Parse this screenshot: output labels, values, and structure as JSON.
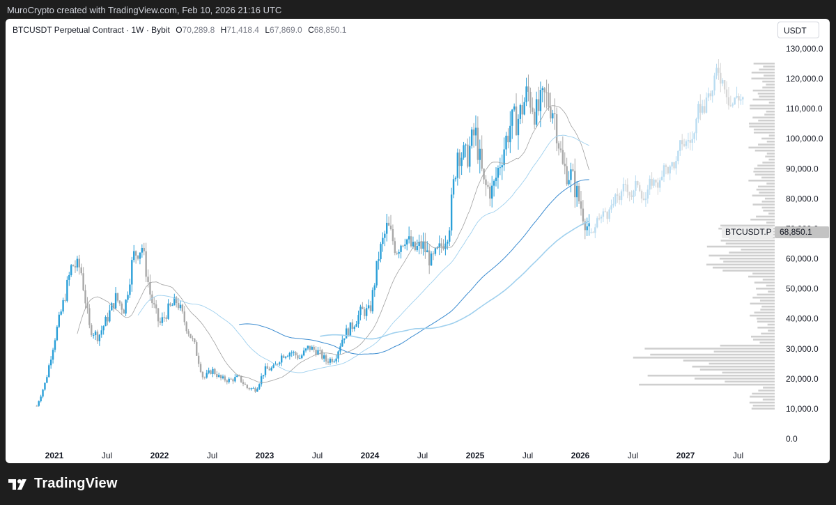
{
  "header": {
    "credit": "MuroCrypto created with TradingView.com, Feb 10, 2026 21:16 UTC"
  },
  "legend": {
    "symbol": "BTCUSDT Perpetual Contract · 1W · Bybit",
    "o_label": "O",
    "o_value": "70,289.8",
    "h_label": "H",
    "h_value": "71,418.4",
    "l_label": "L",
    "l_value": "67,869.0",
    "c_label": "C",
    "c_value": "68,850.1"
  },
  "price_axis": {
    "currency": "USDT",
    "symbol_tag": "BTCUSDT.P",
    "last_price": "68,850.1"
  },
  "footer": {
    "brand": "TradingView"
  },
  "colors": {
    "up": "#2a9fd8",
    "down": "#a8a8a8",
    "projection_up": "#b9dcf1",
    "projection_down": "#d6d6d6",
    "ma_dark": "#3a8bd0",
    "ma_light": "#9fd0ee",
    "ma_gray": "#a0a0a0",
    "volume_profile": "#cfcfcf"
  },
  "chart_data": {
    "type": "candlestick",
    "title": "BTCUSDT Perpetual Contract · 1W · Bybit",
    "ylim": [
      0,
      130000
    ],
    "y_ticks": [
      "130,000.0",
      "120,000.0",
      "110,000.0",
      "100,000.0",
      "90,000.0",
      "80,000.0",
      "70,000.0",
      "60,000.0",
      "50,000.0",
      "40,000.0",
      "30,000.0",
      "20,000.0",
      "10,000.0",
      "0.0"
    ],
    "y_tick_values": [
      130000,
      120000,
      110000,
      100000,
      90000,
      80000,
      70000,
      60000,
      50000,
      40000,
      30000,
      20000,
      10000,
      0
    ],
    "x_ticks": [
      "2021",
      "Jul",
      "2022",
      "Jul",
      "2023",
      "Jul",
      "2024",
      "Jul",
      "2025",
      "Jul",
      "2026",
      "Jul",
      "2027",
      "Jul"
    ],
    "x_tick_dates": [
      "2021-01",
      "2021-07",
      "2022-01",
      "2022-07",
      "2023-01",
      "2023-07",
      "2024-01",
      "2024-07",
      "2025-01",
      "2025-07",
      "2026-01",
      "2026-07",
      "2027-01",
      "2027-07"
    ],
    "x_tick_bold": [
      true,
      false,
      true,
      false,
      true,
      false,
      true,
      false,
      true,
      false,
      true,
      false,
      true,
      false
    ],
    "price_path": [
      [
        "2020-11",
        11000
      ],
      [
        "2020-12",
        19000
      ],
      [
        "2021-01",
        33000
      ],
      [
        "2021-02",
        45000
      ],
      [
        "2021-03",
        58000
      ],
      [
        "2021-04",
        57000
      ],
      [
        "2021-05",
        37000
      ],
      [
        "2021-06",
        34000
      ],
      [
        "2021-07",
        40000
      ],
      [
        "2021-08",
        47000
      ],
      [
        "2021-09",
        43000
      ],
      [
        "2021-10",
        61000
      ],
      [
        "2021-11",
        64000
      ],
      [
        "2021-12",
        47000
      ],
      [
        "2022-01",
        38000
      ],
      [
        "2022-02",
        43000
      ],
      [
        "2022-03",
        46000
      ],
      [
        "2022-04",
        38000
      ],
      [
        "2022-05",
        31000
      ],
      [
        "2022-06",
        20000
      ],
      [
        "2022-07",
        23000
      ],
      [
        "2022-08",
        20000
      ],
      [
        "2022-09",
        19500
      ],
      [
        "2022-10",
        20500
      ],
      [
        "2022-11",
        17000
      ],
      [
        "2022-12",
        16500
      ],
      [
        "2023-01",
        23000
      ],
      [
        "2023-02",
        23500
      ],
      [
        "2023-03",
        28000
      ],
      [
        "2023-04",
        29000
      ],
      [
        "2023-05",
        27000
      ],
      [
        "2023-06",
        30500
      ],
      [
        "2023-07",
        29200
      ],
      [
        "2023-08",
        26000
      ],
      [
        "2023-09",
        27000
      ],
      [
        "2023-10",
        34500
      ],
      [
        "2023-11",
        37700
      ],
      [
        "2023-12",
        42500
      ],
      [
        "2024-01",
        42500
      ],
      [
        "2024-02",
        61000
      ],
      [
        "2024-03",
        71000
      ],
      [
        "2024-04",
        63000
      ],
      [
        "2024-05",
        67500
      ],
      [
        "2024-06",
        62700
      ],
      [
        "2024-07",
        64600
      ],
      [
        "2024-08",
        58900
      ],
      [
        "2024-09",
        63300
      ],
      [
        "2024-10",
        70200
      ],
      [
        "2024-11",
        96400
      ],
      [
        "2024-12",
        93400
      ],
      [
        "2025-01",
        102400
      ],
      [
        "2025-02",
        84300
      ],
      [
        "2025-03",
        82500
      ],
      [
        "2025-04",
        94200
      ],
      [
        "2025-05",
        104600
      ],
      [
        "2025-06",
        107100
      ],
      [
        "2025-07",
        115700
      ],
      [
        "2025-08",
        108200
      ],
      [
        "2025-09",
        114000
      ],
      [
        "2025-10",
        109500
      ],
      [
        "2025-11",
        90400
      ],
      [
        "2025-12",
        87500
      ],
      [
        "2026-01",
        78000
      ],
      [
        "2026-02",
        68850
      ]
    ]
  }
}
